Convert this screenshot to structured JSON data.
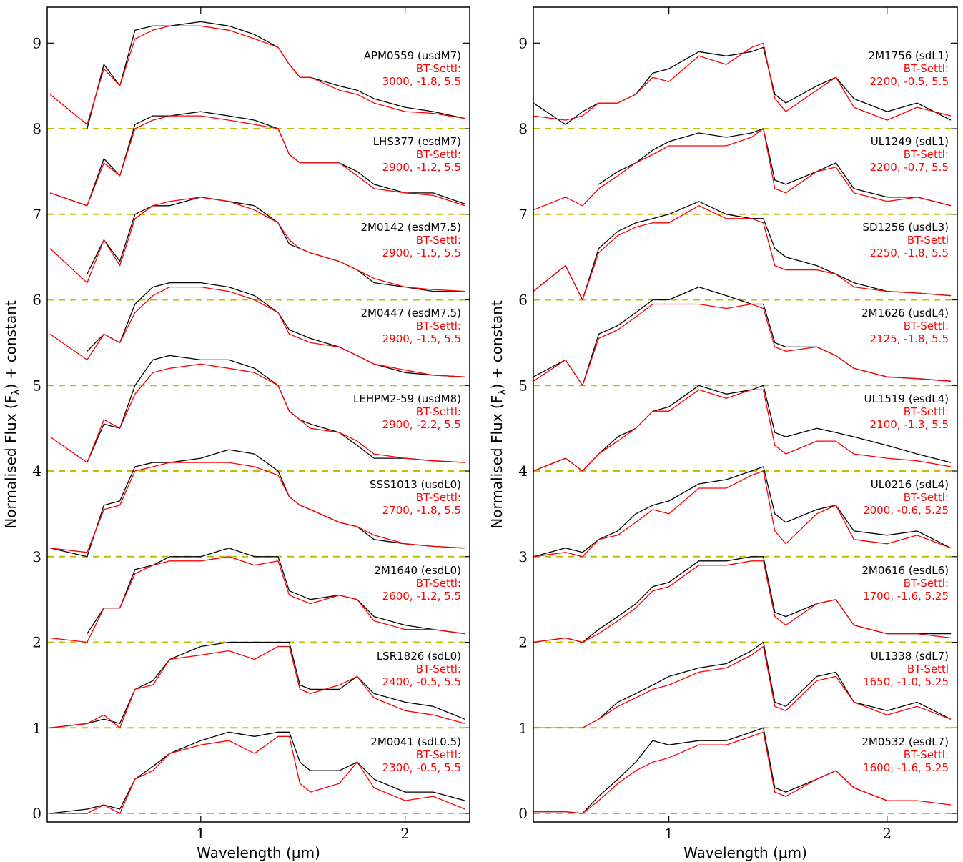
{
  "chart_data": [
    {
      "type": "line",
      "xscale": "log",
      "grid": false,
      "xlabel": "Wavelength (μm)",
      "ylabel": "Normalised Flux  (F",
      "ylabel_sub": "λ",
      "ylabel_end": ") + constant",
      "xlim": [
        0.594,
        2.49
      ],
      "ylim": [
        -0.1,
        9.42
      ],
      "xticks": [
        1,
        2
      ],
      "yticks": [
        0,
        1,
        2,
        3,
        4,
        5,
        6,
        7,
        8,
        9
      ],
      "baselines": [
        0,
        1,
        2,
        3,
        4,
        5,
        6,
        7,
        8
      ],
      "baseline_color": "#bfbf00",
      "x": [
        0.6,
        0.68,
        0.72,
        0.76,
        0.8,
        0.85,
        0.9,
        1.0,
        1.1,
        1.2,
        1.3,
        1.35,
        1.4,
        1.45,
        1.6,
        1.7,
        1.8,
        2.0,
        2.2,
        2.45
      ],
      "series": [
        {
          "name": "APM0559 (usdM7)",
          "color": "#000000",
          "values": [
            null,
            8.0,
            8.75,
            8.5,
            9.15,
            9.2,
            9.2,
            9.25,
            9.2,
            9.1,
            8.95,
            8.75,
            8.6,
            8.6,
            8.5,
            8.45,
            8.35,
            8.25,
            8.2,
            8.12
          ]
        },
        {
          "name": "BT-Settl:",
          "params": "3000, -1.8, 5.5",
          "color": "#ff0000",
          "values": [
            8.4,
            8.05,
            8.7,
            8.5,
            9.05,
            9.15,
            9.2,
            9.2,
            9.15,
            9.05,
            8.95,
            8.75,
            8.6,
            8.6,
            8.45,
            8.4,
            8.3,
            8.2,
            8.18,
            8.12
          ]
        },
        {
          "name": "LHS377 (esdM7)",
          "color": "#000000",
          "values": [
            7.25,
            7.1,
            7.65,
            7.45,
            8.05,
            8.15,
            8.15,
            8.2,
            8.15,
            8.1,
            8.0,
            7.7,
            7.6,
            7.6,
            7.6,
            7.5,
            7.35,
            7.25,
            7.25,
            7.12
          ]
        },
        {
          "name": "BT-Settl:",
          "params": "2900, -1.2, 5.5",
          "color": "#ff0000",
          "values": [
            7.25,
            7.1,
            7.6,
            7.45,
            8.0,
            8.1,
            8.15,
            8.15,
            8.1,
            8.05,
            8.0,
            7.7,
            7.6,
            7.6,
            7.6,
            7.45,
            7.3,
            7.25,
            7.22,
            7.1
          ]
        },
        {
          "name": "2M0142 (esdM7.5)",
          "color": "#000000",
          "values": [
            null,
            6.3,
            6.7,
            6.45,
            7.0,
            7.1,
            7.1,
            7.2,
            7.15,
            7.1,
            6.9,
            6.65,
            6.6,
            6.55,
            6.45,
            6.35,
            6.2,
            6.15,
            6.1,
            6.1
          ]
        },
        {
          "name": "BT-Settl:",
          "params": "2900, -1.5, 5.5",
          "color": "#ff0000",
          "values": [
            6.6,
            6.2,
            6.7,
            6.4,
            6.95,
            7.1,
            7.15,
            7.2,
            7.15,
            7.05,
            6.9,
            6.7,
            6.6,
            6.55,
            6.45,
            6.35,
            6.25,
            6.15,
            6.12,
            6.1
          ]
        },
        {
          "name": "2M0447 (esdM7.5)",
          "color": "#000000",
          "values": [
            null,
            5.4,
            5.6,
            5.5,
            5.95,
            6.15,
            6.2,
            6.2,
            6.15,
            6.05,
            5.85,
            5.65,
            5.6,
            5.55,
            5.45,
            5.35,
            5.25,
            5.15,
            5.12,
            5.1
          ]
        },
        {
          "name": "BT-Settl:",
          "params": "2900, -1.5, 5.5",
          "color": "#ff0000",
          "values": [
            5.6,
            5.3,
            5.6,
            5.5,
            5.85,
            6.05,
            6.15,
            6.15,
            6.1,
            6.0,
            5.85,
            5.6,
            5.55,
            5.5,
            5.45,
            5.35,
            5.25,
            5.18,
            5.12,
            5.1
          ]
        },
        {
          "name": "LEHPM2-59 (usdM8)",
          "color": "#000000",
          "values": [
            null,
            4.1,
            4.55,
            4.5,
            5.0,
            5.3,
            5.35,
            5.3,
            5.3,
            5.2,
            5.0,
            4.7,
            4.6,
            4.55,
            4.45,
            4.3,
            4.15,
            4.15,
            4.12,
            4.1
          ]
        },
        {
          "name": "BT-Settl:",
          "params": "2900, -2.2, 5.5",
          "color": "#ff0000",
          "values": [
            4.4,
            4.1,
            4.6,
            4.5,
            4.9,
            5.15,
            5.2,
            5.25,
            5.2,
            5.15,
            5.0,
            4.7,
            4.6,
            4.5,
            4.45,
            4.35,
            4.2,
            4.15,
            4.12,
            4.1
          ]
        },
        {
          "name": "SSS1013 (usdL0)",
          "color": "#000000",
          "values": [
            3.1,
            3.0,
            3.6,
            3.65,
            4.05,
            4.1,
            4.1,
            4.15,
            4.25,
            4.2,
            4.0,
            3.7,
            3.6,
            3.55,
            3.4,
            3.35,
            3.2,
            3.15,
            3.12,
            3.1
          ]
        },
        {
          "name": "BT-Settl:",
          "params": "2700, -1.8, 5.5",
          "color": "#ff0000",
          "values": [
            3.1,
            3.05,
            3.55,
            3.6,
            4.0,
            4.05,
            4.1,
            4.1,
            4.1,
            4.05,
            3.95,
            3.7,
            3.6,
            3.55,
            3.4,
            3.35,
            3.25,
            3.15,
            3.12,
            3.1
          ]
        },
        {
          "name": "2M1640 (esdL0)",
          "color": "#000000",
          "values": [
            null,
            2.1,
            2.4,
            2.4,
            2.85,
            2.9,
            3.0,
            3.0,
            3.1,
            3.0,
            3.0,
            2.6,
            2.55,
            2.5,
            2.55,
            2.5,
            2.3,
            2.2,
            2.15,
            2.1
          ]
        },
        {
          "name": "BT-Settl:",
          "params": "2600, -1.2, 5.5",
          "color": "#ff0000",
          "values": [
            2.05,
            2.0,
            2.4,
            2.4,
            2.8,
            2.9,
            2.95,
            2.95,
            3.0,
            2.9,
            2.95,
            2.55,
            2.5,
            2.45,
            2.55,
            2.5,
            2.25,
            2.15,
            2.15,
            2.1
          ]
        },
        {
          "name": "LSR1826 (sdL0)",
          "color": "#000000",
          "values": [
            1.0,
            1.05,
            1.1,
            1.05,
            1.45,
            1.55,
            1.8,
            1.95,
            2.0,
            2.0,
            2.0,
            2.0,
            1.5,
            1.45,
            1.45,
            1.6,
            1.4,
            1.3,
            1.25,
            1.1
          ]
        },
        {
          "name": "BT-Settl:",
          "params": "2400, -0.5, 5.5",
          "color": "#ff0000",
          "values": [
            1.0,
            1.05,
            1.15,
            1.0,
            1.45,
            1.5,
            1.8,
            1.85,
            1.9,
            1.8,
            1.95,
            1.95,
            1.45,
            1.4,
            1.5,
            1.6,
            1.35,
            1.2,
            1.15,
            1.05
          ]
        },
        {
          "name": "2M0041 (sdL0.5)",
          "color": "#000000",
          "values": [
            0.0,
            0.05,
            0.1,
            0.05,
            0.4,
            0.55,
            0.7,
            0.85,
            0.95,
            0.9,
            0.95,
            0.95,
            0.6,
            0.5,
            0.5,
            0.6,
            0.4,
            0.25,
            0.25,
            0.15
          ]
        },
        {
          "name": "BT-Settl:",
          "params": "2300, -0.5, 5.5",
          "color": "#ff0000",
          "values": [
            0.0,
            0.0,
            0.1,
            0.0,
            0.4,
            0.5,
            0.7,
            0.8,
            0.85,
            0.7,
            0.9,
            0.9,
            0.35,
            0.25,
            0.35,
            0.6,
            0.3,
            0.15,
            0.2,
            0.05
          ]
        }
      ]
    },
    {
      "type": "line",
      "xscale": "log",
      "grid": false,
      "xlabel": "Wavelength (μm)",
      "ylabel": "Normalised Flux  (F",
      "ylabel_sub": "λ",
      "ylabel_end": ") + constant",
      "xlim": [
        0.65,
        2.5
      ],
      "ylim": [
        -0.1,
        9.42
      ],
      "xticks": [
        1,
        2
      ],
      "yticks": [
        0,
        1,
        2,
        3,
        4,
        5,
        6,
        7,
        8,
        9
      ],
      "baselines": [
        0,
        1,
        2,
        3,
        4,
        5,
        6,
        7,
        8
      ],
      "baseline_color": "#bfbf00",
      "x": [
        0.65,
        0.72,
        0.76,
        0.8,
        0.85,
        0.9,
        0.95,
        1.0,
        1.1,
        1.2,
        1.3,
        1.35,
        1.4,
        1.45,
        1.6,
        1.7,
        1.8,
        2.0,
        2.2,
        2.45
      ],
      "series": [
        {
          "name": "2M1756 (sdL1)",
          "color": "#000000",
          "values": [
            8.3,
            8.05,
            8.2,
            8.3,
            8.3,
            8.4,
            8.65,
            8.7,
            8.9,
            8.85,
            8.9,
            8.95,
            8.4,
            8.3,
            8.5,
            8.6,
            8.35,
            8.2,
            8.3,
            8.1
          ]
        },
        {
          "name": "BT-Settl:",
          "params": "2200, -0.5, 5.5",
          "color": "#ff0000",
          "values": [
            8.15,
            8.1,
            8.15,
            8.3,
            8.3,
            8.4,
            8.6,
            8.55,
            8.85,
            8.75,
            8.95,
            9.0,
            8.35,
            8.2,
            8.45,
            8.6,
            8.25,
            8.1,
            8.25,
            8.15
          ]
        },
        {
          "name": "UL1249 (sdL1)",
          "color": "#000000",
          "values": [
            null,
            null,
            null,
            7.35,
            7.5,
            7.6,
            7.75,
            7.85,
            7.95,
            7.9,
            7.95,
            8.0,
            7.4,
            7.35,
            7.5,
            7.6,
            7.3,
            7.2,
            7.2,
            7.1
          ]
        },
        {
          "name": "BT-Settl:",
          "params": "2200, -0.7, 5.5",
          "color": "#ff0000",
          "values": [
            7.05,
            7.2,
            7.1,
            7.3,
            7.45,
            7.6,
            7.7,
            7.8,
            7.8,
            7.8,
            7.9,
            8.0,
            7.3,
            7.25,
            7.5,
            7.55,
            7.25,
            7.15,
            7.2,
            7.1
          ]
        },
        {
          "name": "SD1256 (usdL3)",
          "color": "#000000",
          "values": [
            6.1,
            6.4,
            6.0,
            6.6,
            6.8,
            6.9,
            6.95,
            7.0,
            7.15,
            7.0,
            6.95,
            6.95,
            6.6,
            6.5,
            6.4,
            6.3,
            6.2,
            6.1,
            6.08,
            6.05
          ]
        },
        {
          "name": "BT-Settl",
          "params": "2250, -1.8, 5.5",
          "color": "#ff0000",
          "values": [
            6.1,
            6.4,
            6.0,
            6.55,
            6.75,
            6.85,
            6.9,
            6.9,
            7.1,
            6.95,
            6.95,
            6.9,
            6.4,
            6.35,
            6.35,
            6.3,
            6.15,
            6.1,
            6.08,
            6.05
          ]
        },
        {
          "name": "2M1626 (usdL4)",
          "color": "#000000",
          "values": [
            5.1,
            5.3,
            5.0,
            5.6,
            5.7,
            5.85,
            6.0,
            6.0,
            6.15,
            6.05,
            5.95,
            5.95,
            5.5,
            5.45,
            5.45,
            5.35,
            5.2,
            5.1,
            5.08,
            5.05
          ]
        },
        {
          "name": "BT-Settl:",
          "params": "2125, -1.8, 5.5",
          "color": "#ff0000",
          "values": [
            5.05,
            5.3,
            5.0,
            5.55,
            5.65,
            5.8,
            5.95,
            5.95,
            5.95,
            5.9,
            5.95,
            5.9,
            5.45,
            5.4,
            5.45,
            5.35,
            5.2,
            5.1,
            5.08,
            5.05
          ]
        },
        {
          "name": "UL1519 (esdL4)",
          "color": "#000000",
          "values": [
            4.0,
            4.15,
            4.0,
            4.2,
            4.4,
            4.5,
            4.7,
            4.75,
            5.0,
            4.9,
            4.95,
            5.0,
            4.45,
            4.4,
            4.5,
            4.45,
            4.4,
            4.3,
            4.2,
            4.1
          ]
        },
        {
          "name": "BT-Settl:",
          "params": "2100, -1.3, 5.5",
          "color": "#ff0000",
          "values": [
            4.0,
            4.15,
            4.0,
            4.2,
            4.35,
            4.5,
            4.7,
            4.7,
            4.95,
            4.85,
            4.95,
            4.95,
            4.3,
            4.2,
            4.35,
            4.35,
            4.2,
            4.15,
            4.12,
            4.05
          ]
        },
        {
          "name": "UL0216 (sdL4)",
          "color": "#000000",
          "values": [
            3.0,
            3.1,
            3.05,
            3.2,
            3.3,
            3.5,
            3.6,
            3.65,
            3.85,
            3.9,
            4.0,
            4.05,
            3.5,
            3.4,
            3.55,
            3.6,
            3.3,
            3.25,
            3.3,
            3.1
          ]
        },
        {
          "name": "BT-Settl:",
          "params": "2000, -0.6, 5.25",
          "color": "#ff0000",
          "values": [
            3.0,
            3.05,
            3.0,
            3.2,
            3.25,
            3.4,
            3.55,
            3.5,
            3.8,
            3.8,
            3.95,
            4.0,
            3.3,
            3.15,
            3.5,
            3.6,
            3.2,
            3.15,
            3.25,
            3.1
          ]
        },
        {
          "name": "2M0616 (esdL6)",
          "color": "#000000",
          "values": [
            2.0,
            2.05,
            2.0,
            2.15,
            2.3,
            2.45,
            2.65,
            2.7,
            2.95,
            2.95,
            3.0,
            3.0,
            2.35,
            2.3,
            2.45,
            2.5,
            2.2,
            2.1,
            2.1,
            2.1
          ]
        },
        {
          "name": "BT-Settl:",
          "params": "1700, -1.6, 5.25",
          "color": "#ff0000",
          "values": [
            2.0,
            2.05,
            2.0,
            2.1,
            2.25,
            2.4,
            2.6,
            2.65,
            2.9,
            2.9,
            2.95,
            2.95,
            2.3,
            2.2,
            2.45,
            2.5,
            2.2,
            2.1,
            2.1,
            2.05
          ]
        },
        {
          "name": "UL1338 (sdL7)",
          "color": "#000000",
          "values": [
            null,
            null,
            null,
            1.1,
            1.3,
            1.4,
            1.5,
            1.6,
            1.7,
            1.75,
            1.9,
            2.0,
            1.3,
            1.25,
            1.6,
            1.65,
            1.3,
            1.2,
            1.3,
            1.1
          ]
        },
        {
          "name": "BT-Settl",
          "params": "1650, -1.0, 5.25",
          "color": "#ff0000",
          "values": [
            1.0,
            1.0,
            1.0,
            1.1,
            1.25,
            1.35,
            1.45,
            1.5,
            1.65,
            1.7,
            1.85,
            1.95,
            1.25,
            1.2,
            1.55,
            1.6,
            1.3,
            1.15,
            1.25,
            1.1
          ]
        },
        {
          "name": "2M0532 (esdL7)",
          "color": "#000000",
          "values": [
            0.02,
            0.02,
            0.0,
            0.2,
            0.4,
            0.6,
            0.85,
            0.8,
            0.85,
            0.85,
            0.95,
            1.0,
            0.3,
            0.25,
            0.4,
            0.5,
            0.3,
            0.15,
            0.15,
            null
          ]
        },
        {
          "name": "BT-Settl:",
          "params": "1600, -1.6, 5.25",
          "color": "#ff0000",
          "values": [
            0.02,
            0.02,
            0.0,
            0.15,
            0.35,
            0.5,
            0.6,
            0.65,
            0.8,
            0.8,
            0.9,
            0.95,
            0.25,
            0.2,
            0.4,
            0.5,
            0.3,
            0.15,
            0.15,
            0.1
          ]
        }
      ]
    }
  ]
}
